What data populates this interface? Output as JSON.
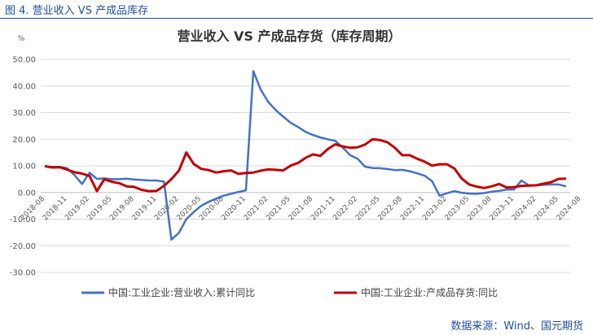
{
  "figure_caption": "图 4.  营业收入 VS 产成品库存",
  "source_note": "数据来源：Wind、国元期货",
  "chart_data": {
    "type": "line",
    "title": "营业收入 VS 产成品存货（库存周期）",
    "unit_label": "%",
    "ylim": [
      -30,
      50
    ],
    "y_ticks": [
      50,
      40,
      30,
      20,
      10,
      0,
      -10,
      -20,
      -30
    ],
    "y_tick_labels": [
      "50.00",
      "40.00",
      "30.00",
      "20.00",
      "10.00",
      "0.00",
      "-10.00",
      "-20.00",
      "-30.00"
    ],
    "x_tick_labels": [
      "2018-08",
      "2018-11",
      "2019-02",
      "2019-05",
      "2019-08",
      "2019-11",
      "2020-02",
      "2020-05",
      "2020-08",
      "2020-11",
      "2021-02",
      "2021-05",
      "2021-08",
      "2021-11",
      "2022-02",
      "2022-05",
      "2022-08",
      "2022-11",
      "2023-02",
      "2023-05",
      "2023-08",
      "2023-11",
      "2024-02",
      "2024-05",
      "2024-08"
    ],
    "x_start": "2018-08",
    "grid": true,
    "legend_position": "bottom",
    "series": [
      {
        "name": "中国:工业企业:营业收入:累计同比",
        "color": "#4472c4",
        "values": [
          9.8,
          9.6,
          9.6,
          9.1,
          6.5,
          3.2,
          7.4,
          5.1,
          5.3,
          5.0,
          5.0,
          5.2,
          4.9,
          4.7,
          4.5,
          4.5,
          4.1,
          -17.7,
          -15.2,
          -10.0,
          -7.3,
          -5.0,
          -3.5,
          -2.3,
          -1.2,
          -0.5,
          0.2,
          0.8,
          45.6,
          38.6,
          34.0,
          31.0,
          28.5,
          26.2,
          24.6,
          22.8,
          21.6,
          20.7,
          20.0,
          19.4,
          16.9,
          14.0,
          12.7,
          9.7,
          9.2,
          9.1,
          8.8,
          8.4,
          8.5,
          8.0,
          7.2,
          6.3,
          4.3,
          -1.2,
          -0.3,
          0.5,
          -0.1,
          -0.4,
          -0.5,
          -0.2,
          0.3,
          0.6,
          1.1,
          1.1,
          4.5,
          2.7,
          2.7,
          2.9,
          3.0,
          3.0,
          2.3
        ]
      },
      {
        "name": "中国:工业企业:产成品存货:同比",
        "color": "#c00000",
        "values": [
          9.9,
          9.4,
          9.5,
          8.6,
          7.6,
          7.1,
          6.2,
          0.5,
          5.0,
          4.0,
          3.5,
          2.3,
          2.1,
          1.0,
          0.5,
          0.6,
          2.5,
          5.0,
          8.2,
          15.0,
          10.7,
          8.9,
          8.4,
          7.5,
          8.0,
          8.3,
          7.0,
          7.3,
          7.5,
          8.2,
          8.7,
          8.5,
          8.3,
          10.1,
          11.1,
          13.0,
          14.3,
          13.8,
          16.3,
          18.1,
          17.3,
          16.8,
          17.0,
          18.0,
          20.0,
          19.7,
          18.9,
          16.8,
          14.0,
          14.0,
          12.7,
          11.6,
          10.1,
          10.6,
          10.6,
          9.0,
          5.2,
          3.0,
          2.2,
          1.7,
          2.3,
          3.2,
          1.9,
          2.0,
          2.5,
          2.6,
          2.7,
          3.3,
          3.9,
          5.1,
          5.2
        ]
      }
    ]
  }
}
